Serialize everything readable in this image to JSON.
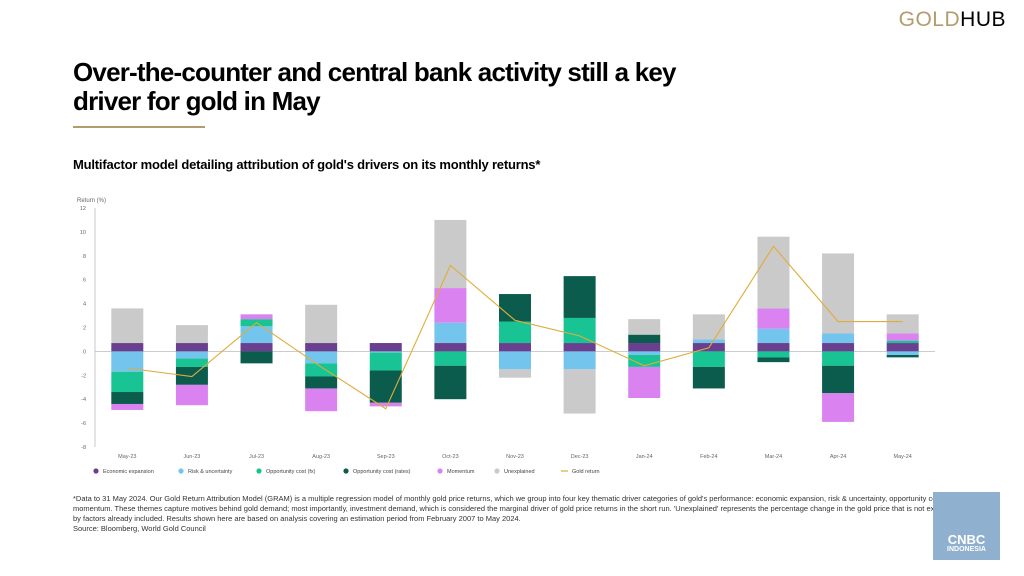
{
  "brand": {
    "gold": "GOLD",
    "hub": "HUB"
  },
  "title": "Over-the-counter and central bank activity still a key driver for gold in May",
  "subtitle": "Multifactor model detailing attribution of gold's drivers on its monthly returns*",
  "notes": {
    "line1": "*Data to 31 May 2024. Our Gold Return Attribution Model (GRAM) is a multiple regression model of monthly gold price returns, which we group into four key thematic driver categories of gold's performance: economic expansion, risk & uncertainty, opportunity cost, and momentum. These themes capture motives behind gold demand; most importantly, investment demand, which is considered the marginal driver of gold price returns in the short run. 'Unexplained' represents the percentage change in the gold price that is not explained by factors already included. Results shown here are based on analysis covering an estimation period from February 2007 to May 2024.",
    "line2": "Source: Bloomberg, World Gold Council"
  },
  "badge": {
    "line1": "CNBC",
    "line2": "INDONESIA"
  },
  "chart_data": {
    "type": "bar",
    "stacked": true,
    "ylabel": "Return (%)",
    "ylim": [
      -8,
      12
    ],
    "yticks": [
      -8,
      -6,
      -4,
      -2,
      0,
      2,
      4,
      6,
      8,
      10,
      12
    ],
    "grid": false,
    "legend_position": "bottom",
    "categories": [
      "May-23",
      "Jun-23",
      "Jul-23",
      "Aug-23",
      "Sep-23",
      "Oct-23",
      "Nov-23",
      "Dec-23",
      "Jan-24",
      "Feb-24",
      "Mar-24",
      "Apr-24",
      "May-24"
    ],
    "series": [
      {
        "name": "Economic expansion",
        "color": "#6b3f8f",
        "values": [
          0.7,
          0.7,
          0.7,
          0.7,
          0.7,
          0.7,
          0.7,
          0.7,
          0.7,
          0.7,
          0.7,
          0.7,
          0.7
        ]
      },
      {
        "name": "Risk & uncertainty",
        "color": "#74c5ee",
        "values": [
          -1.7,
          -0.6,
          1.4,
          -1.0,
          -0.1,
          1.7,
          -1.5,
          -1.5,
          -0.3,
          0.3,
          1.2,
          0.8,
          -0.3
        ]
      },
      {
        "name": "Opportunity cost (fx)",
        "color": "#18c493",
        "values": [
          -1.7,
          -0.7,
          0.6,
          -1.1,
          -1.5,
          -1.2,
          1.8,
          2.1,
          -1.0,
          -1.3,
          -0.5,
          -1.2,
          0.2
        ]
      },
      {
        "name": "Opportunity cost (rates)",
        "color": "#0c5c4d",
        "values": [
          -1.0,
          -1.5,
          -1.0,
          -1.0,
          -2.7,
          -2.8,
          2.3,
          3.5,
          0.7,
          -1.8,
          -0.4,
          -2.3,
          -0.2
        ]
      },
      {
        "name": "Momentum",
        "color": "#d982f0",
        "values": [
          -0.5,
          -1.7,
          0.4,
          -1.9,
          -0.3,
          2.9,
          0.0,
          0.0,
          -2.6,
          0.0,
          1.7,
          -2.4,
          0.6
        ]
      },
      {
        "name": "Unexplained",
        "color": "#cacaca",
        "values": [
          2.9,
          1.5,
          0.0,
          3.2,
          0.0,
          5.7,
          -0.7,
          -3.7,
          1.3,
          2.1,
          6.0,
          6.7,
          1.6
        ]
      }
    ],
    "line_series": {
      "name": "Gold return",
      "color": "#e0ac3a",
      "values": [
        -1.4,
        -2.1,
        2.4,
        -1.3,
        -4.8,
        7.2,
        2.6,
        1.3,
        -1.2,
        0.3,
        8.8,
        2.5,
        2.5
      ]
    }
  }
}
